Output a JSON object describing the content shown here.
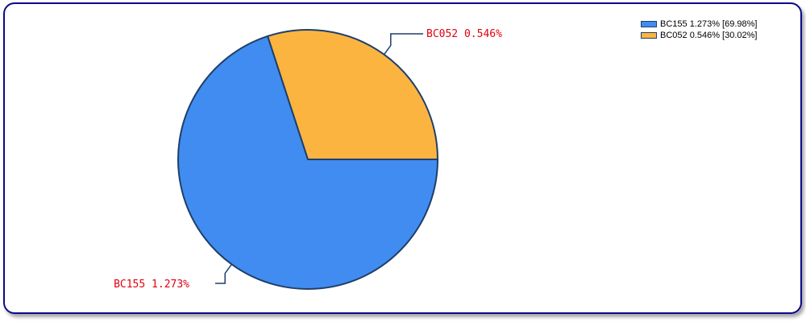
{
  "chart_data": {
    "type": "pie",
    "slices": [
      {
        "name": "BC155",
        "value": 1.273,
        "percent": 69.98,
        "color": "#418cf0",
        "label": "BC155 1.273%",
        "legend": "BC155 1.273% [69.98%]"
      },
      {
        "name": "BC052",
        "value": 0.546,
        "percent": 30.02,
        "color": "#fcb441",
        "label": "BC052 0.546%",
        "legend": "BC052 0.546% [30.02%]"
      }
    ],
    "start_angle_deg": 0,
    "direction": "clockwise",
    "border_color": "#1f3f6a",
    "leader_line_color": "#1f3f6a",
    "label_color": "#e0000f",
    "legend_placement": "top-right"
  }
}
